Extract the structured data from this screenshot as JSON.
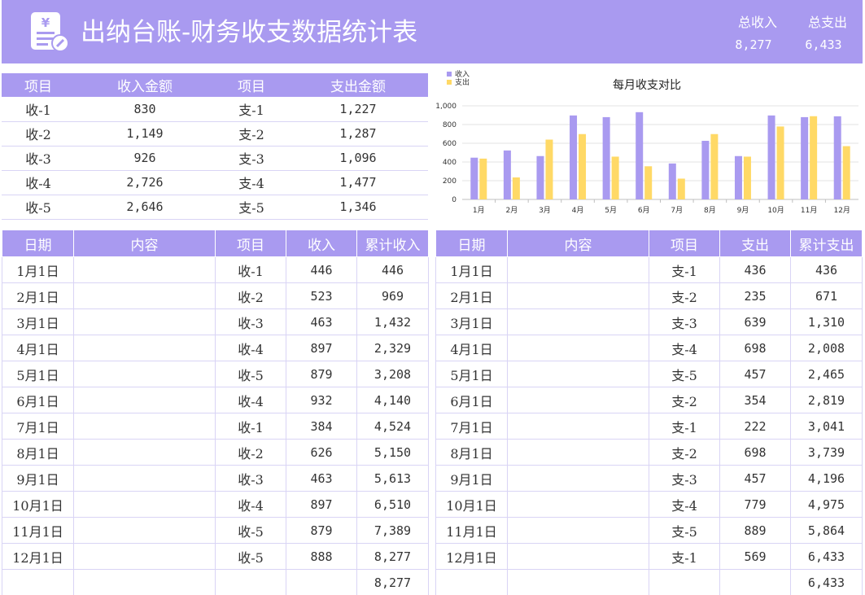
{
  "header": {
    "title": "出纳台账-财务收支数据统计表",
    "logo_icon": "yen-document-icon",
    "total_income_label": "总收入",
    "total_income_value": "8,277",
    "total_expense_label": "总支出",
    "total_expense_value": "6,433",
    "accent_color": "#a99af0"
  },
  "summary": {
    "headers": [
      "项目",
      "收入金额",
      "项目",
      "支出金额"
    ],
    "rows": [
      [
        "收-1",
        "830",
        "支-1",
        "1,227"
      ],
      [
        "收-2",
        "1,149",
        "支-2",
        "1,287"
      ],
      [
        "收-3",
        "926",
        "支-3",
        "1,096"
      ],
      [
        "收-4",
        "2,726",
        "支-4",
        "1,477"
      ],
      [
        "收-5",
        "2,646",
        "支-5",
        "1,346"
      ]
    ]
  },
  "income_table": {
    "headers": [
      "日期",
      "内容",
      "项目",
      "收入",
      "累计收入"
    ],
    "rows": [
      [
        "1月1日",
        "",
        "收-1",
        "446",
        "446"
      ],
      [
        "2月1日",
        "",
        "收-2",
        "523",
        "969"
      ],
      [
        "3月1日",
        "",
        "收-3",
        "463",
        "1,432"
      ],
      [
        "4月1日",
        "",
        "收-4",
        "897",
        "2,329"
      ],
      [
        "5月1日",
        "",
        "收-5",
        "879",
        "3,208"
      ],
      [
        "6月1日",
        "",
        "收-4",
        "932",
        "4,140"
      ],
      [
        "7月1日",
        "",
        "收-1",
        "384",
        "4,524"
      ],
      [
        "8月1日",
        "",
        "收-2",
        "626",
        "5,150"
      ],
      [
        "9月1日",
        "",
        "收-3",
        "463",
        "5,613"
      ],
      [
        "10月1日",
        "",
        "收-4",
        "897",
        "6,510"
      ],
      [
        "11月1日",
        "",
        "收-5",
        "879",
        "7,389"
      ],
      [
        "12月1日",
        "",
        "收-5",
        "888",
        "8,277"
      ],
      [
        "",
        "",
        "",
        "",
        "8,277"
      ]
    ]
  },
  "expense_table": {
    "headers": [
      "日期",
      "内容",
      "项目",
      "支出",
      "累计支出"
    ],
    "rows": [
      [
        "1月1日",
        "",
        "支-1",
        "436",
        "436"
      ],
      [
        "2月1日",
        "",
        "支-2",
        "235",
        "671"
      ],
      [
        "3月1日",
        "",
        "支-3",
        "639",
        "1,310"
      ],
      [
        "4月1日",
        "",
        "支-4",
        "698",
        "2,008"
      ],
      [
        "5月1日",
        "",
        "支-5",
        "457",
        "2,465"
      ],
      [
        "6月1日",
        "",
        "支-2",
        "354",
        "2,819"
      ],
      [
        "7月1日",
        "",
        "支-1",
        "222",
        "3,041"
      ],
      [
        "8月1日",
        "",
        "支-2",
        "698",
        "3,739"
      ],
      [
        "9月1日",
        "",
        "支-3",
        "457",
        "4,196"
      ],
      [
        "10月1日",
        "",
        "支-4",
        "779",
        "4,975"
      ],
      [
        "11月1日",
        "",
        "支-5",
        "889",
        "5,864"
      ],
      [
        "12月1日",
        "",
        "支-1",
        "569",
        "6,433"
      ],
      [
        "",
        "",
        "",
        "",
        "6,433"
      ]
    ]
  },
  "chart_data": {
    "type": "bar",
    "title": "每月收支对比",
    "categories": [
      "1月",
      "2月",
      "3月",
      "4月",
      "5月",
      "6月",
      "7月",
      "8月",
      "9月",
      "10月",
      "11月",
      "12月"
    ],
    "series": [
      {
        "name": "收入",
        "color": "#a99af0",
        "values": [
          446,
          523,
          463,
          897,
          879,
          932,
          384,
          626,
          463,
          897,
          879,
          888
        ]
      },
      {
        "name": "支出",
        "color": "#ffd966",
        "values": [
          436,
          235,
          639,
          698,
          457,
          354,
          222,
          698,
          457,
          779,
          889,
          569
        ]
      }
    ],
    "ylim": [
      0,
      1000
    ],
    "yticks": [
      "0",
      "200",
      "400",
      "600",
      "800",
      "1,000"
    ],
    "grid": true,
    "legend": "top-left"
  }
}
